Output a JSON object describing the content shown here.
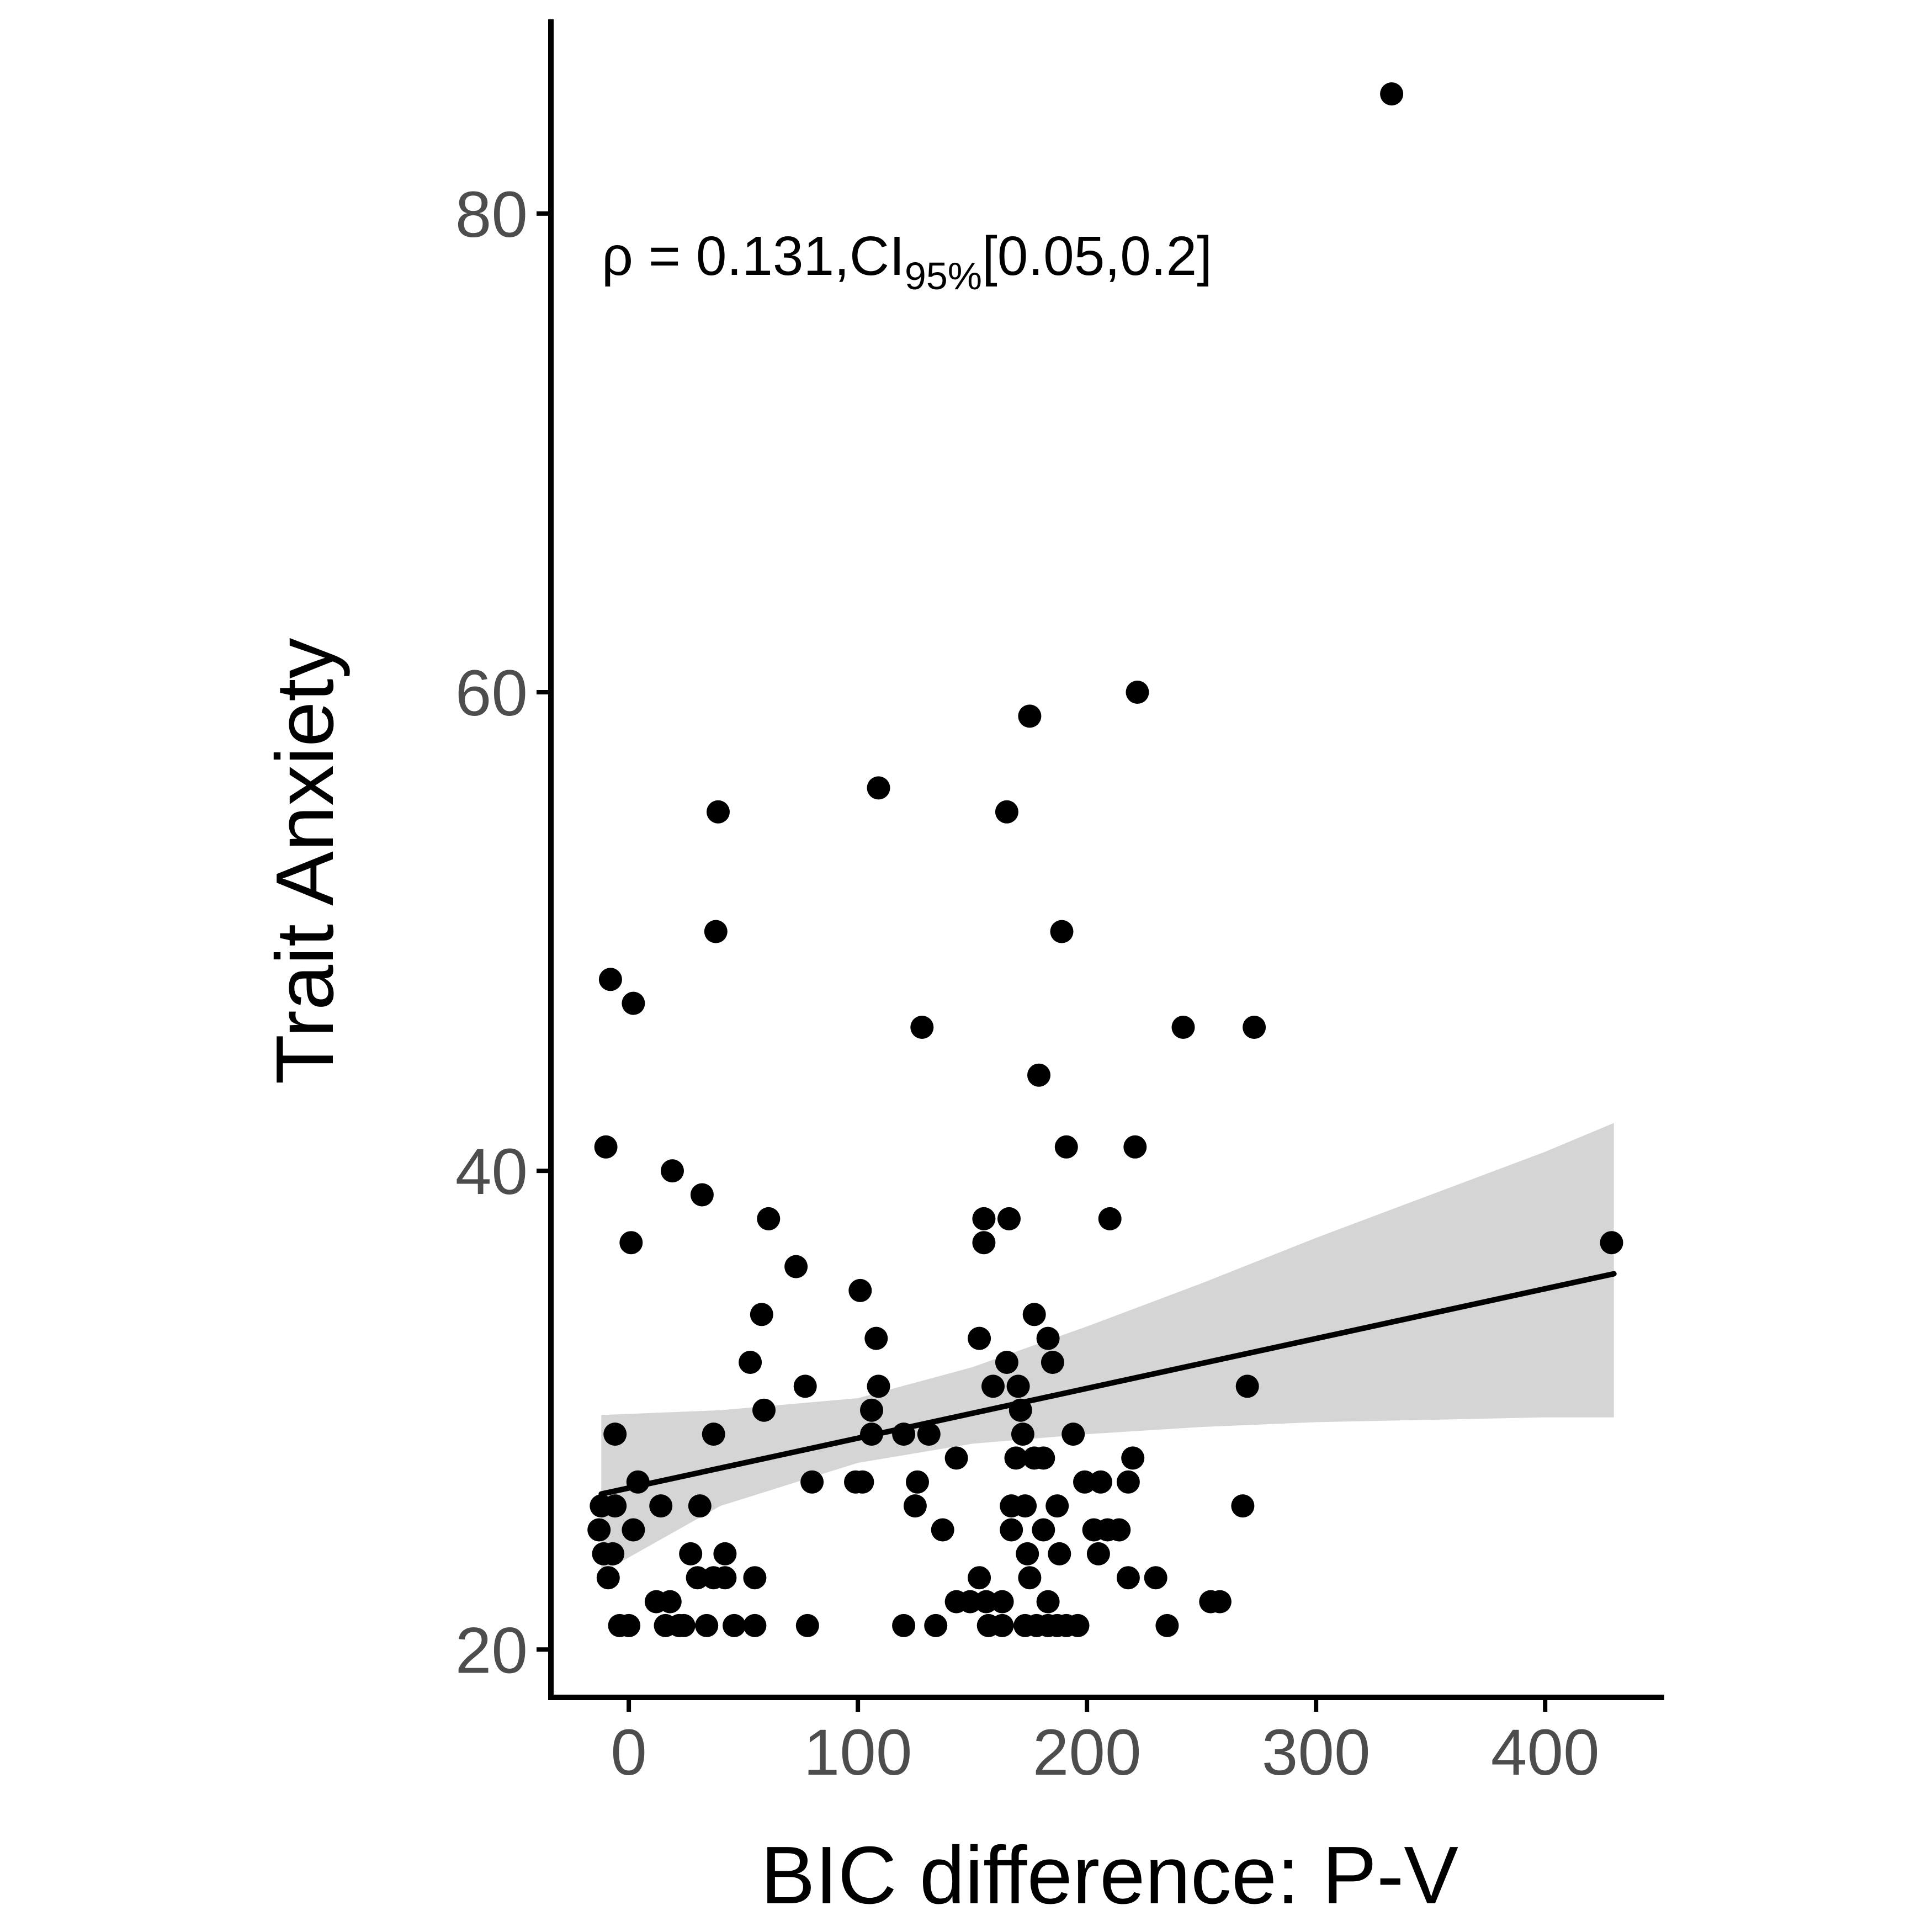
{
  "chart_data": {
    "type": "scatter",
    "xlabel": "BIC difference: P-V",
    "ylabel": "Trait Anxiety",
    "xlim": [
      -34,
      452
    ],
    "ylim": [
      18,
      88
    ],
    "x_ticks": [
      0,
      100,
      200,
      300,
      400
    ],
    "y_ticks": [
      20,
      40,
      60,
      80
    ],
    "grid": false,
    "legend": "none",
    "colors": {
      "points": "#000000",
      "line": "#000000",
      "band": "#cccccc",
      "axis": "#000000"
    },
    "annotation": {
      "rho_symbol": "ρ",
      "main": " = 0.131,CI",
      "subscript": "95%",
      "tail": "[0.05,0.2]"
    },
    "fit": {
      "x": [
        -12,
        430
      ],
      "y": [
        26.5,
        35.7
      ]
    },
    "confidence_band": {
      "x": [
        -12,
        40,
        100,
        150,
        200,
        250,
        300,
        350,
        400,
        430
      ],
      "lower": [
        23.2,
        26.0,
        27.8,
        28.6,
        29.0,
        29.3,
        29.5,
        29.6,
        29.7,
        29.7
      ],
      "upper": [
        29.8,
        30.0,
        30.5,
        31.8,
        33.5,
        35.3,
        37.2,
        39.0,
        40.8,
        42.0
      ]
    },
    "points": [
      [
        333,
        85
      ],
      [
        222,
        60
      ],
      [
        175,
        59
      ],
      [
        109,
        56
      ],
      [
        39,
        55
      ],
      [
        165,
        55
      ],
      [
        38,
        50
      ],
      [
        189,
        50
      ],
      [
        -8,
        48
      ],
      [
        2,
        47
      ],
      [
        128,
        46
      ],
      [
        242,
        46
      ],
      [
        273,
        46
      ],
      [
        179,
        44
      ],
      [
        -10,
        41
      ],
      [
        19,
        40
      ],
      [
        191,
        41
      ],
      [
        221,
        41
      ],
      [
        32,
        39
      ],
      [
        61,
        38
      ],
      [
        155,
        38
      ],
      [
        166,
        38
      ],
      [
        210,
        38
      ],
      [
        1,
        37
      ],
      [
        155,
        37
      ],
      [
        429,
        37
      ],
      [
        73,
        36
      ],
      [
        101,
        35
      ],
      [
        58,
        34
      ],
      [
        177,
        34
      ],
      [
        108,
        33
      ],
      [
        153,
        33
      ],
      [
        183,
        33
      ],
      [
        53,
        32
      ],
      [
        165,
        32
      ],
      [
        185,
        32
      ],
      [
        77,
        31
      ],
      [
        109,
        31
      ],
      [
        159,
        31
      ],
      [
        170,
        31
      ],
      [
        270,
        31
      ],
      [
        59,
        30
      ],
      [
        106,
        30
      ],
      [
        171,
        30
      ],
      [
        -6,
        29
      ],
      [
        37,
        29
      ],
      [
        106,
        29
      ],
      [
        120,
        29
      ],
      [
        131,
        29
      ],
      [
        172,
        29
      ],
      [
        194,
        29
      ],
      [
        143,
        28
      ],
      [
        169,
        28
      ],
      [
        177,
        28
      ],
      [
        181,
        28
      ],
      [
        220,
        28
      ],
      [
        4,
        27
      ],
      [
        80,
        27
      ],
      [
        99,
        27
      ],
      [
        102,
        27
      ],
      [
        126,
        27
      ],
      [
        199,
        27
      ],
      [
        206,
        27
      ],
      [
        218,
        27
      ],
      [
        -12,
        26
      ],
      [
        -6,
        26
      ],
      [
        14,
        26
      ],
      [
        31,
        26
      ],
      [
        125,
        26
      ],
      [
        167,
        26
      ],
      [
        173,
        26
      ],
      [
        187,
        26
      ],
      [
        268,
        26
      ],
      [
        -13,
        25
      ],
      [
        2,
        25
      ],
      [
        137,
        25
      ],
      [
        167,
        25
      ],
      [
        181,
        25
      ],
      [
        203,
        25
      ],
      [
        209,
        25
      ],
      [
        214,
        25
      ],
      [
        -11,
        24
      ],
      [
        -7,
        24
      ],
      [
        27,
        24
      ],
      [
        42,
        24
      ],
      [
        174,
        24
      ],
      [
        188,
        24
      ],
      [
        205,
        24
      ],
      [
        -9,
        23
      ],
      [
        30,
        23
      ],
      [
        37,
        23
      ],
      [
        42,
        23
      ],
      [
        55,
        23
      ],
      [
        153,
        23
      ],
      [
        175,
        23
      ],
      [
        218,
        23
      ],
      [
        230,
        23
      ],
      [
        12,
        22
      ],
      [
        18,
        22
      ],
      [
        143,
        22
      ],
      [
        149,
        22
      ],
      [
        156,
        22
      ],
      [
        163,
        22
      ],
      [
        183,
        22
      ],
      [
        254,
        22
      ],
      [
        258,
        22
      ],
      [
        -4,
        21
      ],
      [
        0,
        21
      ],
      [
        16,
        21
      ],
      [
        22,
        21
      ],
      [
        24,
        21
      ],
      [
        34,
        21
      ],
      [
        46,
        21
      ],
      [
        55,
        21
      ],
      [
        78,
        21
      ],
      [
        120,
        21
      ],
      [
        134,
        21
      ],
      [
        157,
        21
      ],
      [
        163,
        21
      ],
      [
        173,
        21
      ],
      [
        178,
        21
      ],
      [
        183,
        21
      ],
      [
        187,
        21
      ],
      [
        191,
        21
      ],
      [
        196,
        21
      ],
      [
        235,
        21
      ]
    ]
  }
}
